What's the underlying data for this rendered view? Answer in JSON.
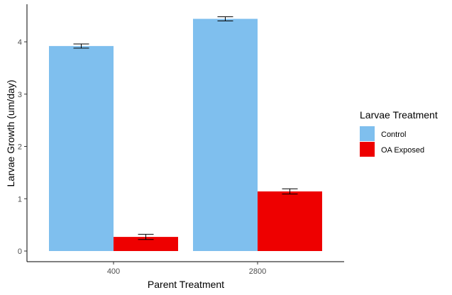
{
  "chart_data": {
    "type": "bar",
    "title": "",
    "xlabel": "Parent Treatment",
    "ylabel": "Larvae Growth (um/day)",
    "categories": [
      "400",
      "2800"
    ],
    "ylim": [
      -0.2,
      4.6
    ],
    "yticks": [
      "0",
      "1",
      "2",
      "3",
      "4"
    ],
    "grid": false,
    "legend": {
      "title": "Larvae Treatment",
      "placement": "right"
    },
    "series": [
      {
        "name": "Control",
        "color": "#7fbfee",
        "values": [
          3.92,
          4.44
        ],
        "error": [
          0.04,
          0.04
        ]
      },
      {
        "name": "OA Exposed",
        "color": "#ee0000",
        "values": [
          0.27,
          1.14
        ],
        "error": [
          0.05,
          0.05
        ]
      }
    ]
  }
}
